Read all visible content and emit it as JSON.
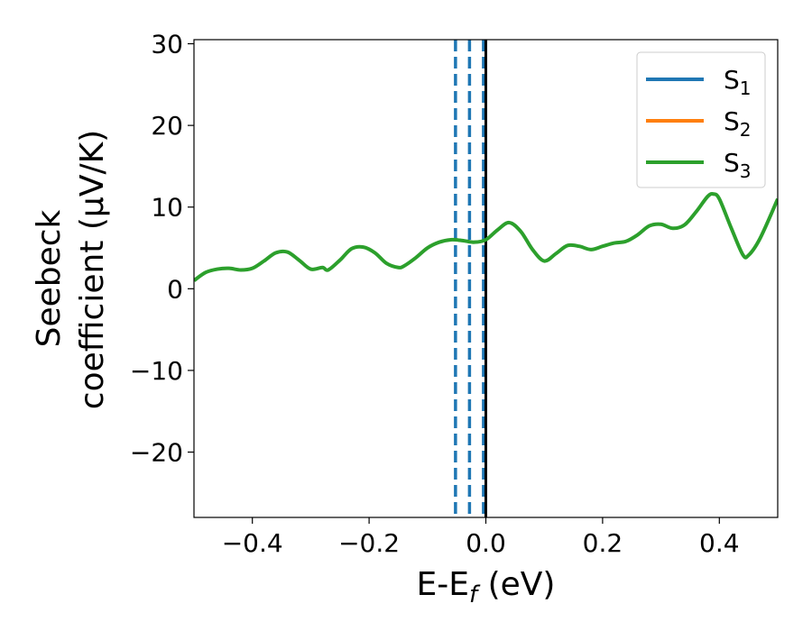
{
  "chart_data": {
    "type": "line",
    "xlabel": "E-E",
    "xlabel_sub": "f",
    "xlabel_unit": " (eV)",
    "ylabel_line1": "Seebeck",
    "ylabel_line2": "coefficient  (μV/K)",
    "xlim": [
      -0.5,
      0.5
    ],
    "ylim": [
      -28,
      30.5
    ],
    "xticks": [
      -0.4,
      -0.2,
      0.0,
      0.2,
      0.4
    ],
    "xtick_labels": [
      "−0.4",
      "−0.2",
      "0.0",
      "0.2",
      "0.4"
    ],
    "yticks": [
      -20,
      -10,
      0,
      10,
      20,
      30
    ],
    "ytick_labels": [
      "−20",
      "−10",
      "0",
      "10",
      "20",
      "30"
    ],
    "grid": false,
    "legend": "top-right",
    "vlines": [
      {
        "x": -0.052,
        "style": "dashed",
        "color": "#1f77b4"
      },
      {
        "x": -0.028,
        "style": "dashed",
        "color": "#1f77b4"
      },
      {
        "x": -0.004,
        "style": "dashed",
        "color": "#1f77b4"
      },
      {
        "x": 0.0,
        "style": "solid",
        "color": "#000000"
      }
    ],
    "series": [
      {
        "name": "S",
        "sub": "1",
        "color": "#1f77b4"
      },
      {
        "name": "S",
        "sub": "2",
        "color": "#ff7f0e"
      },
      {
        "name": "S",
        "sub": "3",
        "color": "#2ca02c",
        "x": [
          -0.5,
          -0.48,
          -0.46,
          -0.44,
          -0.42,
          -0.4,
          -0.38,
          -0.36,
          -0.34,
          -0.32,
          -0.3,
          -0.28,
          -0.27,
          -0.25,
          -0.23,
          -0.21,
          -0.19,
          -0.17,
          -0.15,
          -0.14,
          -0.12,
          -0.1,
          -0.08,
          -0.06,
          -0.04,
          -0.02,
          0.0,
          0.02,
          0.04,
          0.06,
          0.08,
          0.1,
          0.12,
          0.14,
          0.16,
          0.18,
          0.2,
          0.22,
          0.24,
          0.26,
          0.28,
          0.3,
          0.32,
          0.34,
          0.36,
          0.38,
          0.39,
          0.4,
          0.42,
          0.44,
          0.45,
          0.47,
          0.5
        ],
        "y": [
          1.0,
          2.0,
          2.4,
          2.5,
          2.3,
          2.5,
          3.4,
          4.4,
          4.5,
          3.5,
          2.4,
          2.6,
          2.3,
          3.5,
          4.9,
          5.1,
          4.4,
          3.1,
          2.6,
          2.8,
          3.8,
          5.0,
          5.7,
          6.0,
          5.9,
          5.7,
          6.0,
          7.2,
          8.1,
          7.0,
          4.8,
          3.4,
          4.3,
          5.3,
          5.2,
          4.8,
          5.2,
          5.6,
          5.8,
          6.6,
          7.7,
          7.9,
          7.4,
          7.8,
          9.4,
          11.3,
          11.6,
          11.0,
          7.5,
          4.2,
          4.1,
          6.2,
          11.0
        ]
      }
    ]
  }
}
